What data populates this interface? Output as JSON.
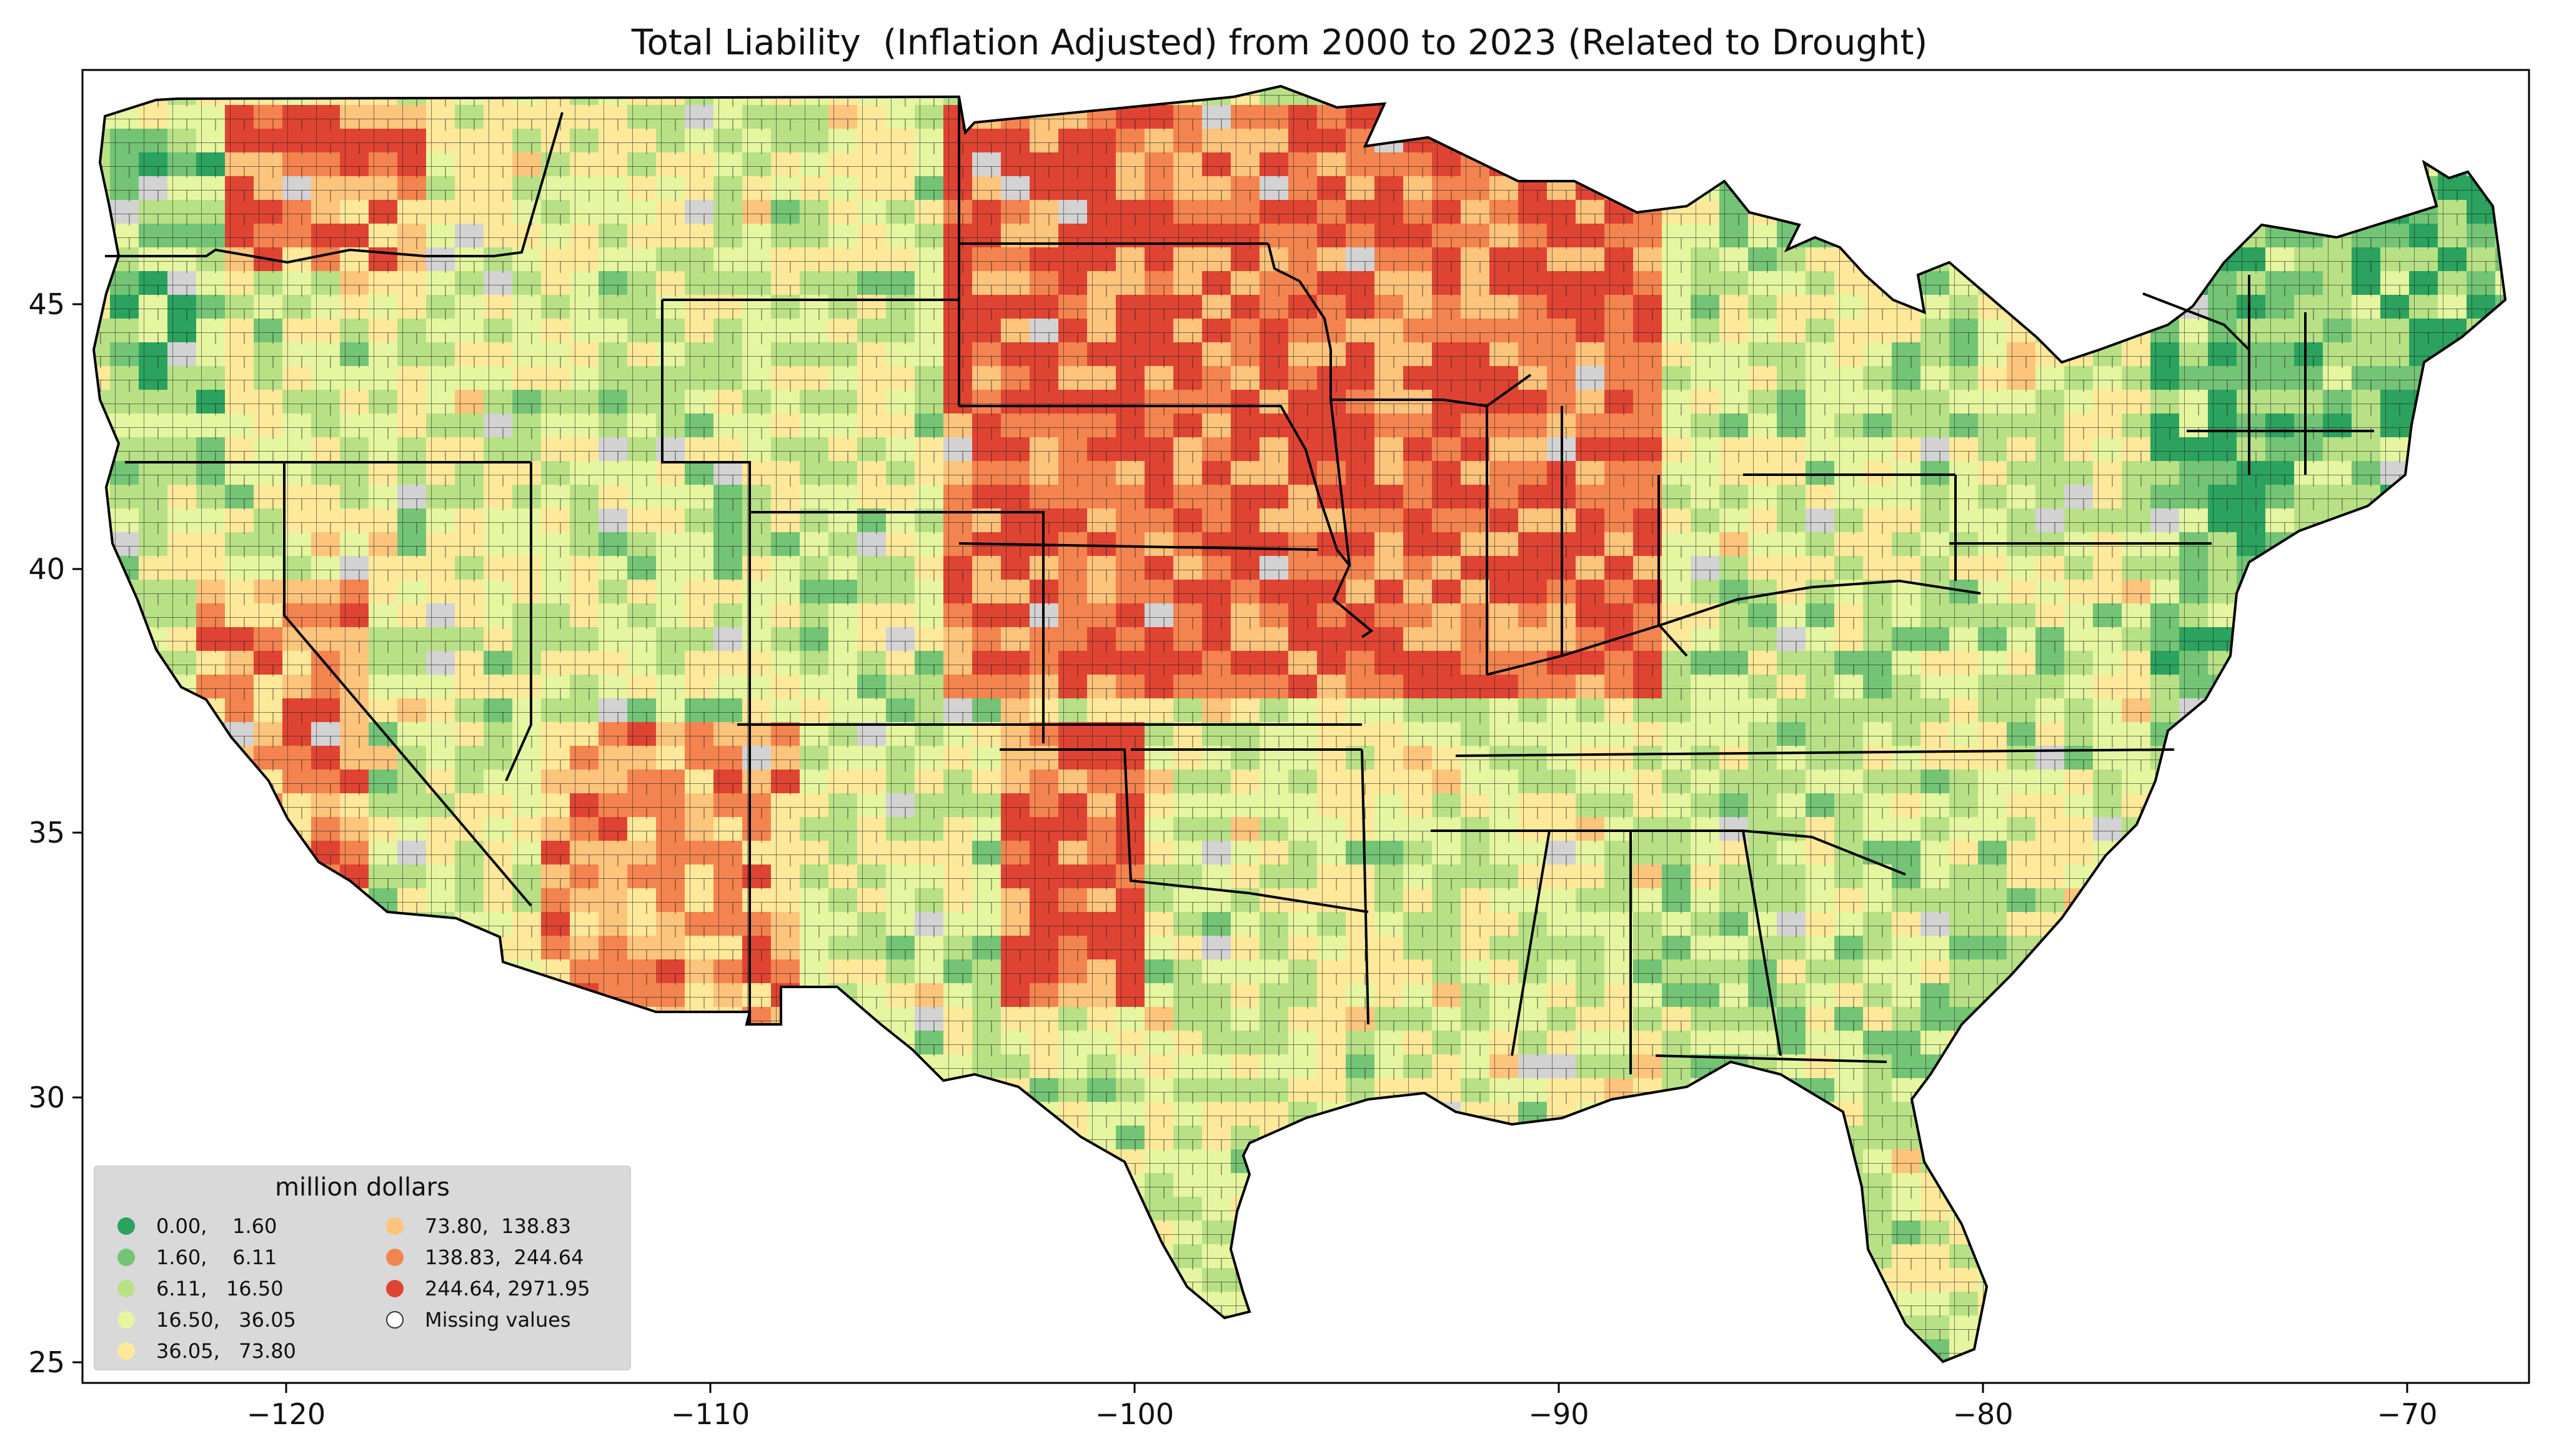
{
  "title": "Total Liability  (Inflation Adjusted) from 2000 to 2023 (Related to Drought)",
  "legend": {
    "title": "million dollars",
    "items": [
      {
        "label": "0.00,    1.60",
        "color": "#2ca25f"
      },
      {
        "label": "1.60,    6.11",
        "color": "#74c476"
      },
      {
        "label": "6.11,   16.50",
        "color": "#b8e186"
      },
      {
        "label": "16.50,   36.05",
        "color": "#e6f5a0"
      },
      {
        "label": "36.05,   73.80",
        "color": "#fee99a"
      },
      {
        "label": "73.80,  138.83",
        "color": "#fdc47c"
      },
      {
        "label": "138.83,  244.64",
        "color": "#f4844f"
      },
      {
        "label": "244.64, 2971.95",
        "color": "#df4433"
      },
      {
        "label": "Missing values",
        "color": "#d3d3d3"
      }
    ]
  },
  "axes": {
    "x_ticks": [
      "−120",
      "−110",
      "−100",
      "−90",
      "−80",
      "−70"
    ],
    "y_ticks": [
      "45",
      "40",
      "35",
      "30",
      "25"
    ]
  },
  "map": {
    "type": "choropleth",
    "region": "Contiguous United States counties",
    "xlim": [
      -124.8,
      -66.9
    ],
    "ylim": [
      24.5,
      49.4
    ]
  }
}
